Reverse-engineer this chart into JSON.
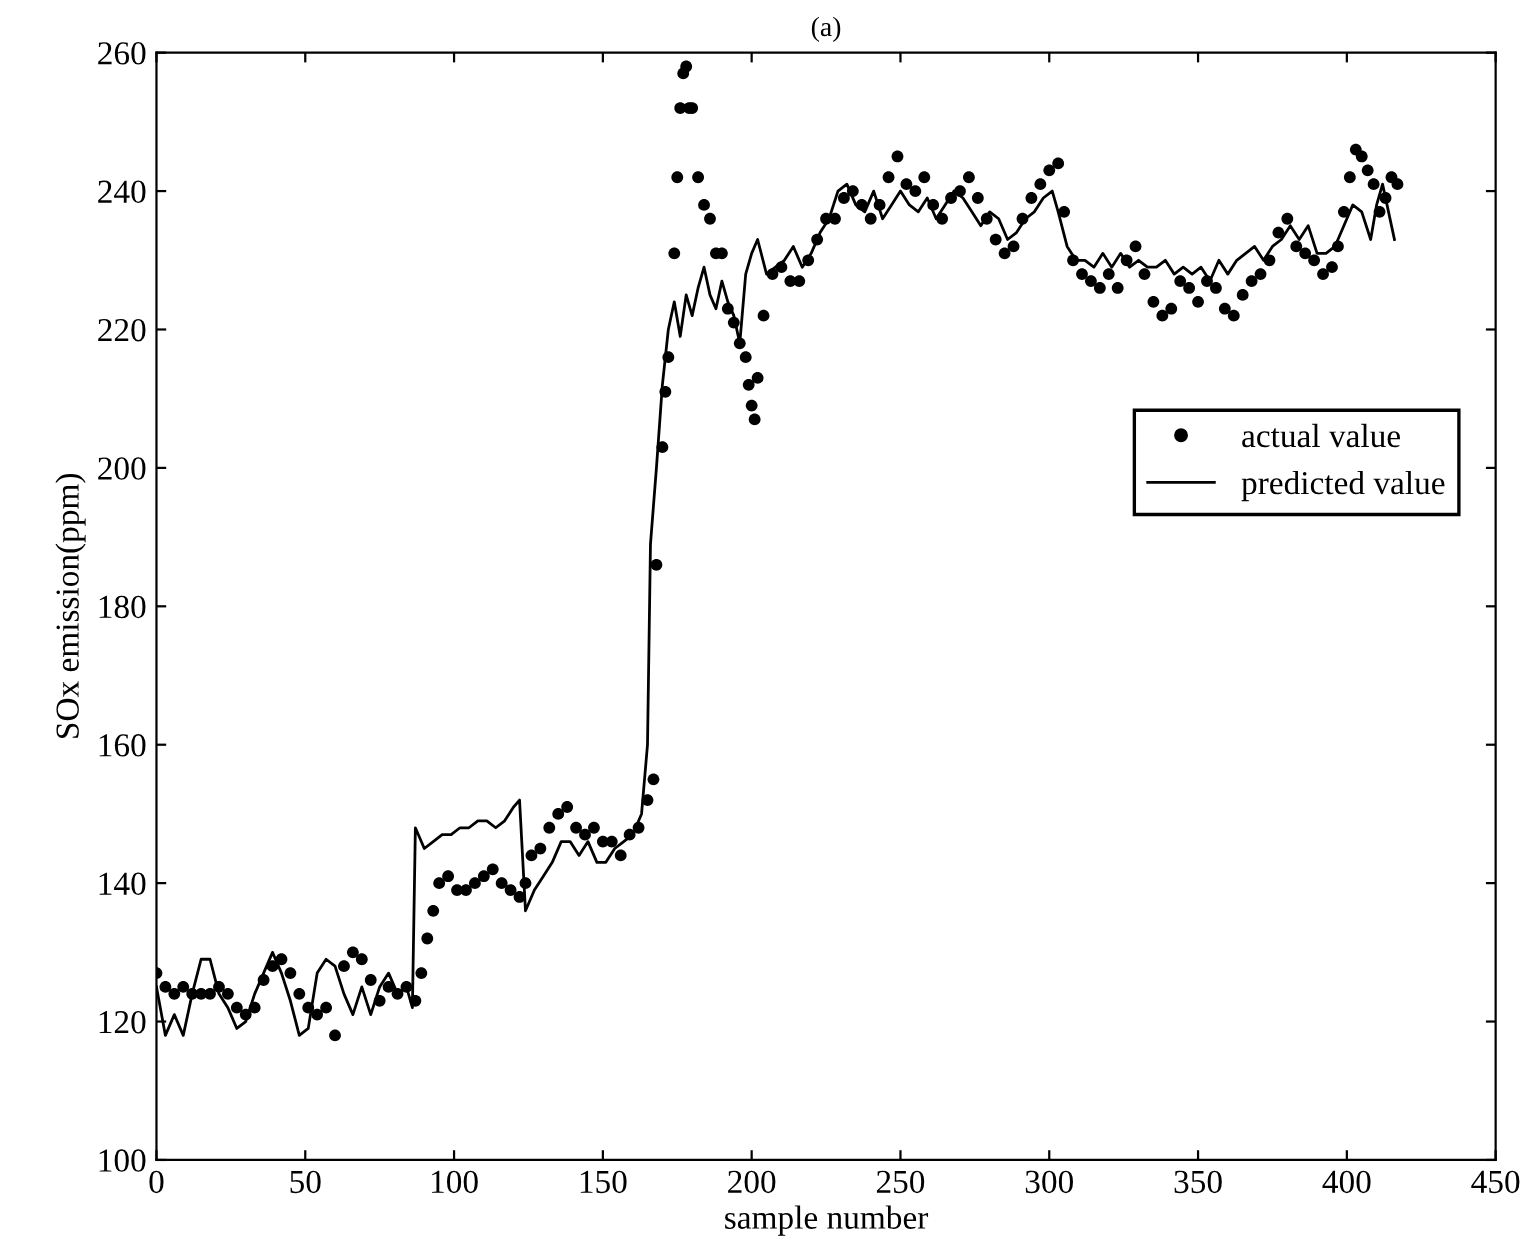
{
  "chart_data": {
    "type": "scatter",
    "title": "(a)",
    "xlabel": "sample number",
    "ylabel": "SOx emission(ppm)",
    "xlim": [
      0,
      450
    ],
    "ylim": [
      100,
      260
    ],
    "xticks": [
      0,
      50,
      100,
      150,
      200,
      250,
      300,
      350,
      400,
      450
    ],
    "yticks": [
      100,
      120,
      140,
      160,
      180,
      200,
      220,
      240,
      260
    ],
    "grid": false,
    "legend": "right",
    "series": [
      {
        "name": "actual value",
        "marker": "circle",
        "color": "#000000",
        "x": [
          0,
          3,
          6,
          9,
          12,
          15,
          18,
          21,
          24,
          27,
          30,
          33,
          36,
          39,
          42,
          45,
          48,
          51,
          54,
          57,
          60,
          63,
          66,
          69,
          72,
          75,
          78,
          81,
          84,
          87,
          89,
          91,
          93,
          95,
          98,
          101,
          104,
          107,
          110,
          113,
          116,
          119,
          122,
          124,
          126,
          129,
          132,
          135,
          138,
          141,
          144,
          147,
          150,
          153,
          156,
          159,
          162,
          165,
          167,
          168,
          170,
          171,
          172,
          174,
          175,
          176,
          177,
          178,
          179,
          180,
          182,
          184,
          186,
          188,
          190,
          192,
          194,
          196,
          198,
          199,
          200,
          201,
          202,
          204,
          207,
          210,
          213,
          216,
          219,
          222,
          225,
          228,
          231,
          234,
          237,
          240,
          243,
          246,
          249,
          252,
          255,
          258,
          261,
          264,
          267,
          270,
          273,
          276,
          279,
          282,
          285,
          288,
          291,
          294,
          297,
          300,
          303,
          305,
          308,
          311,
          314,
          317,
          320,
          323,
          326,
          329,
          332,
          335,
          338,
          341,
          344,
          347,
          350,
          353,
          356,
          359,
          362,
          365,
          368,
          371,
          374,
          377,
          380,
          383,
          386,
          389,
          392,
          395,
          397,
          399,
          401,
          403,
          405,
          407,
          409,
          411,
          413,
          415,
          417
        ],
        "values": [
          127,
          125,
          124,
          125,
          124,
          124,
          124,
          125,
          124,
          122,
          121,
          122,
          126,
          128,
          129,
          127,
          124,
          122,
          121,
          122,
          118,
          128,
          130,
          129,
          126,
          123,
          125,
          124,
          125,
          123,
          127,
          132,
          136,
          140,
          141,
          139,
          139,
          140,
          141,
          142,
          140,
          139,
          138,
          140,
          144,
          145,
          148,
          150,
          151,
          148,
          147,
          148,
          146,
          146,
          144,
          147,
          148,
          152,
          155,
          186,
          203,
          211,
          216,
          231,
          242,
          252,
          257,
          258,
          252,
          252,
          242,
          238,
          236,
          231,
          231,
          223,
          221,
          218,
          216,
          212,
          209,
          207,
          213,
          222,
          228,
          229,
          227,
          227,
          230,
          233,
          236,
          236,
          239,
          240,
          238,
          236,
          238,
          242,
          245,
          241,
          240,
          242,
          238,
          236,
          239,
          240,
          242,
          239,
          236,
          233,
          231,
          232,
          236,
          239,
          241,
          243,
          244,
          237,
          230,
          228,
          227,
          226,
          228,
          226,
          230,
          232,
          228,
          224,
          222,
          223,
          227,
          226,
          224,
          227,
          226,
          223,
          222,
          225,
          227,
          228,
          230,
          234,
          236,
          232,
          231,
          230,
          228,
          229,
          232,
          237,
          242,
          246,
          245,
          243,
          241,
          237,
          239,
          242,
          241
        ]
      },
      {
        "name": "predicted value",
        "type": "line",
        "marker": "none",
        "line_style": "solid",
        "color": "#000000",
        "x": [
          0,
          3,
          6,
          9,
          12,
          15,
          18,
          21,
          24,
          27,
          30,
          33,
          36,
          39,
          42,
          45,
          48,
          51,
          54,
          57,
          60,
          63,
          66,
          69,
          72,
          75,
          78,
          81,
          84,
          86,
          87,
          90,
          93,
          96,
          99,
          102,
          105,
          108,
          111,
          114,
          117,
          120,
          122,
          124,
          127,
          130,
          133,
          136,
          139,
          142,
          145,
          148,
          151,
          154,
          157,
          160,
          163,
          165,
          166,
          168,
          170,
          172,
          174,
          176,
          178,
          180,
          182,
          184,
          186,
          188,
          190,
          192,
          194,
          196,
          198,
          200,
          202,
          205,
          208,
          211,
          214,
          217,
          220,
          223,
          226,
          229,
          232,
          235,
          238,
          241,
          244,
          247,
          250,
          253,
          256,
          259,
          262,
          265,
          268,
          271,
          274,
          277,
          280,
          283,
          286,
          289,
          292,
          295,
          298,
          301,
          303,
          306,
          309,
          312,
          315,
          318,
          321,
          324,
          327,
          330,
          333,
          336,
          339,
          342,
          345,
          348,
          351,
          354,
          357,
          360,
          363,
          366,
          369,
          372,
          375,
          378,
          381,
          384,
          387,
          390,
          393,
          396,
          399,
          402,
          405,
          408,
          410,
          412,
          414,
          416
        ],
        "values": [
          125,
          118,
          121,
          118,
          124,
          129,
          129,
          124,
          122,
          119,
          120,
          124,
          127,
          130,
          127,
          123,
          118,
          119,
          127,
          129,
          128,
          124,
          121,
          125,
          121,
          125,
          127,
          124,
          125,
          122,
          148,
          145,
          146,
          147,
          147,
          148,
          148,
          149,
          149,
          148,
          149,
          151,
          152,
          136,
          139,
          141,
          143,
          146,
          146,
          144,
          146,
          143,
          143,
          145,
          146,
          147,
          150,
          160,
          189,
          200,
          212,
          220,
          224,
          219,
          225,
          222,
          226,
          229,
          225,
          223,
          227,
          224,
          222,
          218,
          228,
          231,
          233,
          228,
          229,
          230,
          232,
          229,
          231,
          234,
          236,
          240,
          241,
          238,
          237,
          240,
          236,
          238,
          240,
          238,
          237,
          239,
          236,
          238,
          240,
          239,
          237,
          235,
          237,
          236,
          233,
          234,
          236,
          237,
          239,
          240,
          237,
          232,
          230,
          230,
          229,
          231,
          229,
          231,
          229,
          230,
          229,
          229,
          230,
          228,
          229,
          228,
          229,
          227,
          230,
          228,
          230,
          231,
          232,
          230,
          232,
          233,
          235,
          233,
          235,
          231,
          231,
          232,
          235,
          238,
          237,
          233,
          238,
          241,
          237,
          233
        ]
      }
    ]
  }
}
